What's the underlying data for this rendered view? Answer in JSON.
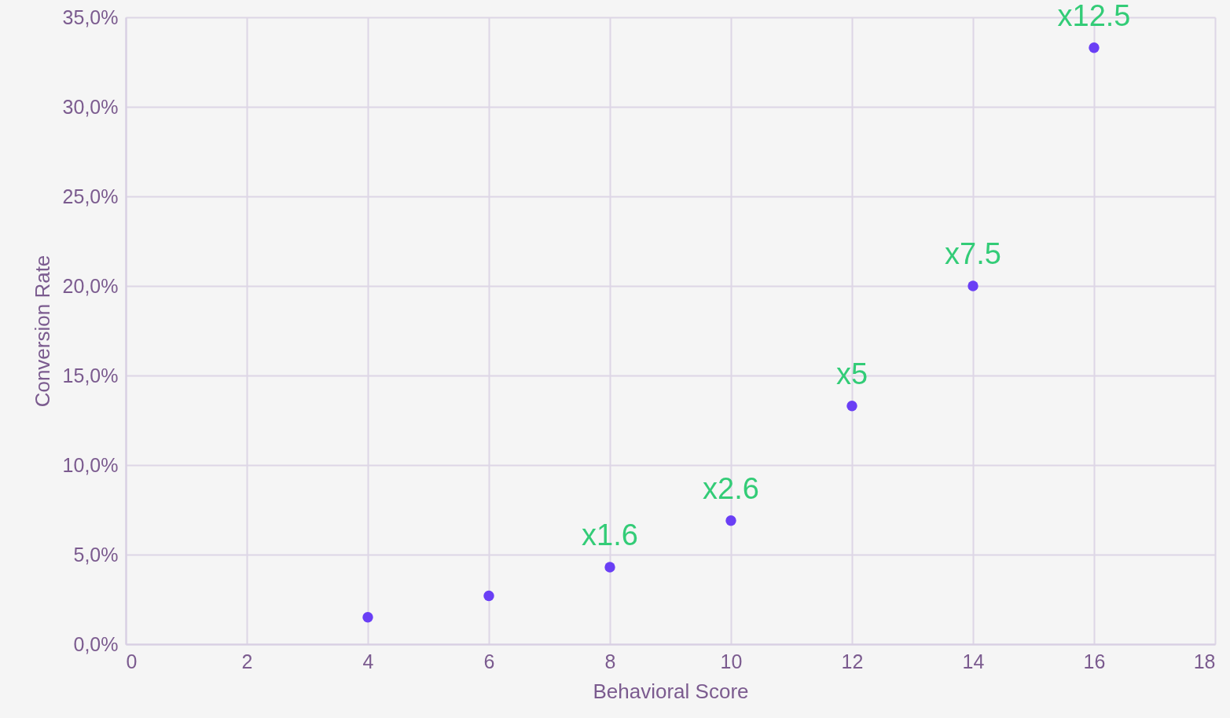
{
  "chart_data": {
    "type": "scatter",
    "xlabel": "Behavioral Score",
    "ylabel": "Conversion Rate",
    "x": [
      4,
      6,
      8,
      10,
      12,
      14,
      16
    ],
    "series": [
      {
        "color": "#6a3ff5",
        "values": [
          1.5,
          2.7,
          4.3,
          6.9,
          13.3,
          20.0,
          33.3
        ]
      }
    ],
    "xlim": [
      0,
      18
    ],
    "xticks": [
      0,
      2,
      4,
      6,
      8,
      10,
      12,
      14,
      16,
      18
    ],
    "ylim": [
      0,
      35
    ],
    "yticks": [
      {
        "value": 0,
        "label": "0,0%"
      },
      {
        "value": 5,
        "label": "5,0%"
      },
      {
        "value": 10,
        "label": "10,0%"
      },
      {
        "value": 15,
        "label": "15,0%"
      },
      {
        "value": 20,
        "label": "20,0%"
      },
      {
        "value": 25,
        "label": "25,0%"
      },
      {
        "value": 30,
        "label": "30,0%"
      },
      {
        "value": 35,
        "label": "35,0%"
      }
    ],
    "grid": true,
    "marker": "circle",
    "annotations": [
      {
        "text": "x1.6",
        "x": 8,
        "y": 4.3
      },
      {
        "text": "x2.6",
        "x": 10,
        "y": 6.9
      },
      {
        "text": "x5",
        "x": 12,
        "y": 13.3
      },
      {
        "text": "x7.5",
        "x": 14,
        "y": 20.0
      },
      {
        "text": "x12.5",
        "x": 16,
        "y": 33.3
      }
    ]
  }
}
